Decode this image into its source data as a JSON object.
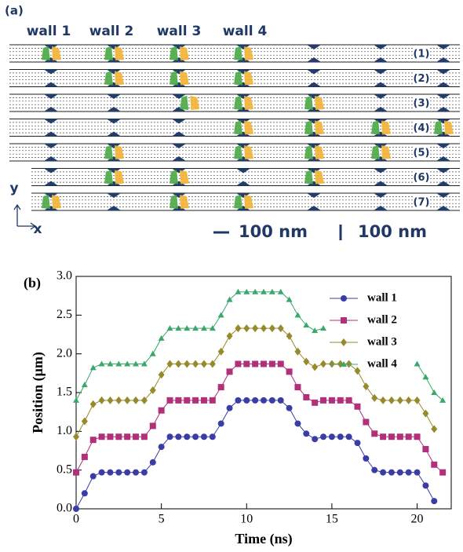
{
  "panel_a": {
    "label": "(a)",
    "walls": [
      "wall 1",
      "wall 2",
      "wall 3",
      "wall 4"
    ],
    "rows": [
      "(1)",
      "(2)",
      "(3)",
      "(4)",
      "(5)",
      "(6)",
      "(7)"
    ],
    "axes": [
      "y",
      "x"
    ],
    "scale_bars": [
      "100 nm",
      "100 nm"
    ]
  },
  "chart_data": {
    "type": "line",
    "panel_label": "(b)",
    "xlabel": "Time (ns)",
    "ylabel": "Position (μm)",
    "xlim": [
      0,
      22
    ],
    "ylim": [
      0,
      3
    ],
    "xticks": [
      0,
      5,
      10,
      15,
      20
    ],
    "yticks": [
      {
        "value": 0,
        "label": "0.0"
      },
      0.5,
      {
        "value": 1,
        "label": "1.0"
      },
      1.5,
      {
        "value": 2,
        "label": "2.0"
      },
      2.5,
      {
        "value": 3,
        "label": "3.0"
      }
    ],
    "x": [
      0,
      0.5,
      1,
      1.5,
      2,
      2.5,
      3,
      3.5,
      4,
      4.5,
      5,
      5.5,
      6,
      6.5,
      7,
      7.5,
      8,
      8.5,
      9,
      9.5,
      10,
      10.5,
      11,
      11.5,
      12,
      12.5,
      13,
      13.5,
      14,
      14.5,
      15,
      15.5,
      16,
      16.5,
      17,
      17.5,
      18,
      18.5,
      19,
      19.5,
      20,
      20.5,
      21,
      21.5
    ],
    "series": [
      {
        "name": "wall 1",
        "color": "#3a3da6",
        "marker": "circle",
        "values": [
          0,
          0.2,
          0.42,
          0.47,
          0.47,
          0.47,
          0.47,
          0.47,
          0.47,
          0.6,
          0.8,
          0.93,
          0.93,
          0.93,
          0.93,
          0.93,
          0.93,
          1.1,
          1.3,
          1.4,
          1.4,
          1.4,
          1.4,
          1.4,
          1.4,
          1.3,
          1.1,
          0.97,
          0.9,
          0.93,
          0.93,
          0.93,
          0.93,
          0.85,
          0.65,
          0.5,
          0.47,
          0.47,
          0.47,
          0.47,
          0.47,
          0.3,
          0.1,
          null
        ]
      },
      {
        "name": "wall 2",
        "color": "#b0307a",
        "marker": "square",
        "values": [
          0.47,
          0.67,
          0.89,
          0.93,
          0.93,
          0.93,
          0.93,
          0.93,
          0.93,
          1.07,
          1.27,
          1.4,
          1.4,
          1.4,
          1.4,
          1.4,
          1.4,
          1.57,
          1.77,
          1.87,
          1.87,
          1.87,
          1.87,
          1.87,
          1.87,
          1.77,
          1.57,
          1.44,
          1.37,
          1.4,
          1.4,
          1.4,
          1.4,
          1.32,
          1.12,
          0.97,
          0.93,
          0.93,
          0.93,
          0.93,
          0.93,
          0.77,
          0.57,
          0.47
        ]
      },
      {
        "name": "wall 3",
        "color": "#968a2c",
        "marker": "diamond",
        "values": [
          0.93,
          1.13,
          1.35,
          1.4,
          1.4,
          1.4,
          1.4,
          1.4,
          1.4,
          1.53,
          1.73,
          1.87,
          1.87,
          1.87,
          1.87,
          1.87,
          1.87,
          2.03,
          2.23,
          2.33,
          2.33,
          2.33,
          2.33,
          2.33,
          2.33,
          2.23,
          2.03,
          1.9,
          1.83,
          1.87,
          1.87,
          1.87,
          1.87,
          1.78,
          1.58,
          1.43,
          1.4,
          1.4,
          1.4,
          1.4,
          1.4,
          1.23,
          1.03,
          null
        ]
      },
      {
        "name": "wall 4",
        "color": "#3aa86c",
        "marker": "triangle",
        "values": [
          1.4,
          1.6,
          1.82,
          1.87,
          1.87,
          1.87,
          1.87,
          1.87,
          1.87,
          2.0,
          2.2,
          2.33,
          2.33,
          2.33,
          2.33,
          2.33,
          2.33,
          2.5,
          2.7,
          2.8,
          2.8,
          2.8,
          2.8,
          2.8,
          2.8,
          2.7,
          2.5,
          2.37,
          2.3,
          2.33,
          null,
          null,
          null,
          null,
          null,
          null,
          null,
          null,
          null,
          null,
          1.87,
          1.7,
          1.5,
          1.4
        ]
      }
    ],
    "legend": "upper right"
  }
}
